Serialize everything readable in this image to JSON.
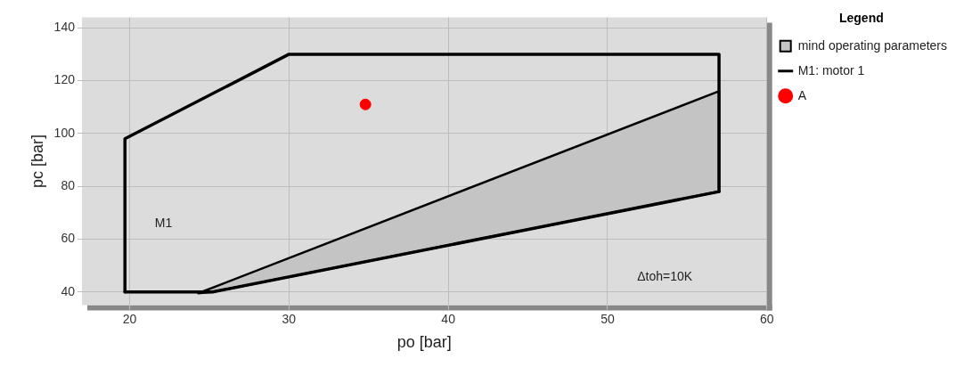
{
  "chart_data": {
    "type": "line",
    "xlabel": "po [bar]",
    "ylabel": "pc [bar]",
    "legend_title": "Legend",
    "xlim": [
      17,
      60
    ],
    "xticks": [
      20,
      30,
      40,
      50,
      60
    ],
    "ylim": [
      35,
      144
    ],
    "yticks": [
      40,
      60,
      80,
      100,
      120,
      140
    ],
    "grid": true,
    "legend": "top right",
    "series": [
      {
        "name": "mind operating parameters",
        "type": "area",
        "color": "#c4c4c4",
        "x": [
          24.3,
          57,
          57,
          25.2
        ],
        "values": [
          39.5,
          116,
          78,
          40
        ]
      },
      {
        "name": "M1: motor 1",
        "color": "#000000",
        "x": [
          19.7,
          19.7,
          30,
          57,
          57
        ],
        "values": [
          40,
          98,
          130,
          130,
          78
        ]
      },
      {
        "type": "line",
        "color": "#000000",
        "x": [
          19.7,
          25.2,
          57
        ],
        "values": [
          40,
          40,
          78
        ]
      },
      {
        "name": "A",
        "type": "scatter",
        "color": "#ff0000",
        "x": [
          34.8
        ],
        "values": [
          111
        ],
        "marker": "circle"
      }
    ],
    "annotations": [
      "M1",
      "Δtoh=10K"
    ]
  }
}
